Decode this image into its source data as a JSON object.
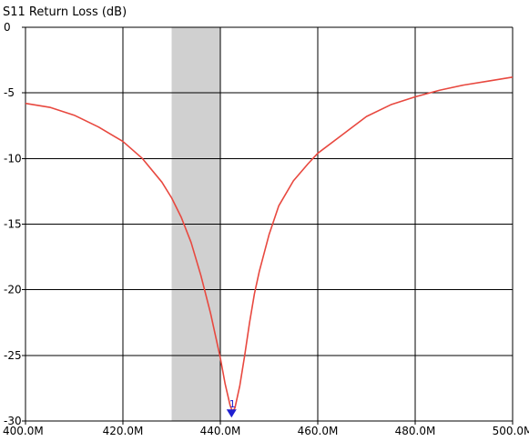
{
  "chart_data": {
    "type": "line",
    "title": "S11 Return Loss (dB)",
    "xlabel": "",
    "ylabel": "",
    "xlim": [
      400,
      500
    ],
    "ylim": [
      -30,
      0
    ],
    "x_ticks": [
      400,
      420,
      440,
      460,
      480,
      500
    ],
    "x_tick_labels": [
      "400.0M",
      "420.0M",
      "440.0M",
      "460.0M",
      "480.0M",
      "500.0M"
    ],
    "y_ticks": [
      0,
      -5,
      -10,
      -15,
      -20,
      -25,
      -30
    ],
    "y_tick_labels": [
      "0",
      "-5",
      "-10",
      "-15",
      "-20",
      "-25",
      "-30"
    ],
    "grid": true,
    "highlight_band": {
      "x": [
        430,
        440
      ],
      "color": "#d0d0d0"
    },
    "series": [
      {
        "color": "#e8483f",
        "x": [
          400,
          405,
          410,
          415,
          420,
          424,
          428,
          430,
          432,
          434,
          436,
          438,
          440,
          441,
          442,
          442.5,
          443,
          444,
          445,
          446,
          447,
          448,
          450,
          452,
          455,
          458,
          460,
          465,
          470,
          475,
          480,
          485,
          490,
          495,
          500
        ],
        "y": [
          -5.8,
          -6.1,
          -6.7,
          -7.6,
          -8.7,
          -10.0,
          -11.8,
          -13.0,
          -14.5,
          -16.4,
          -18.9,
          -21.8,
          -25.2,
          -27.2,
          -28.8,
          -29.3,
          -29.0,
          -27.3,
          -25.0,
          -22.5,
          -20.3,
          -18.6,
          -15.8,
          -13.6,
          -11.7,
          -10.4,
          -9.6,
          -8.2,
          -6.8,
          -5.9,
          -5.3,
          -4.8,
          -4.4,
          -4.1,
          -3.8
        ]
      }
    ],
    "markers": [
      {
        "label": "1",
        "x": 442.3,
        "y": -29.6,
        "color": "#1f1fd1"
      }
    ]
  }
}
